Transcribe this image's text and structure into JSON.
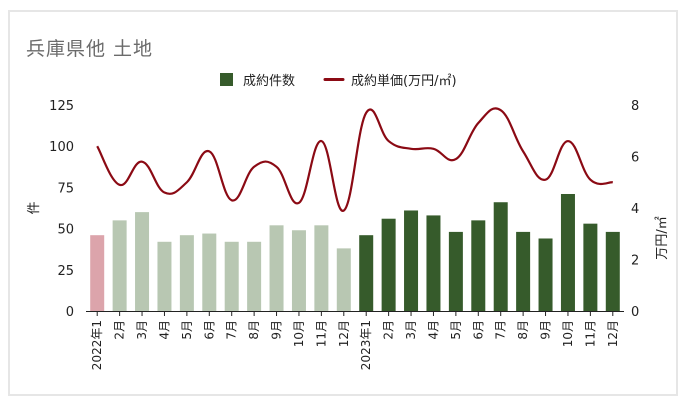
{
  "chart_data": {
    "type": "bar+line",
    "title": "兵庫県他 土地",
    "categories": [
      "2022年1",
      "2月",
      "3月",
      "4月",
      "5月",
      "6月",
      "7月",
      "8月",
      "9月",
      "10月",
      "11月",
      "12月",
      "2023年1",
      "2月",
      "3月",
      "4月",
      "5月",
      "6月",
      "7月",
      "8月",
      "9月",
      "10月",
      "11月",
      "12月"
    ],
    "series": [
      {
        "name": "成約件数",
        "type": "bar",
        "axis": "left",
        "values": [
          46,
          55,
          60,
          42,
          46,
          47,
          42,
          42,
          52,
          49,
          52,
          38,
          46,
          56,
          61,
          58,
          48,
          55,
          66,
          48,
          44,
          71,
          53,
          48
        ],
        "colors": {
          "first": "#dca4ab",
          "2022": "#b8c7b2",
          "2023": "#365b2b"
        }
      },
      {
        "name": "成約単価(万円/㎡)",
        "type": "line",
        "axis": "right",
        "color": "#8b0a14",
        "values": [
          6.4,
          4.9,
          5.8,
          4.6,
          5.0,
          6.2,
          4.3,
          5.6,
          5.6,
          4.2,
          6.6,
          3.9,
          7.7,
          6.6,
          6.3,
          6.3,
          5.9,
          7.3,
          7.8,
          6.2,
          5.1,
          6.6,
          5.1,
          5.0
        ]
      }
    ],
    "ylabel": "件",
    "y2label": "万円/㎡",
    "ylim": [
      0,
      125
    ],
    "y2lim": [
      0,
      8
    ],
    "yticks": [
      0,
      25,
      50,
      75,
      100,
      125
    ],
    "y2ticks": [
      0,
      2,
      4,
      6,
      8
    ],
    "legend": "top-center",
    "grid": false
  }
}
